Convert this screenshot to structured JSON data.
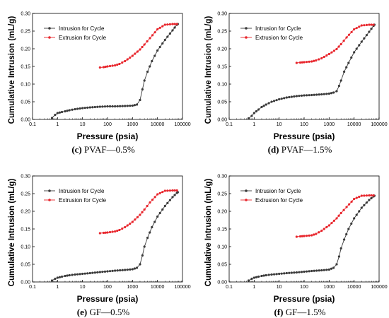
{
  "chart_data": [
    {
      "type": "line",
      "panel": "(c)",
      "caption_text": "PVAF—0.5%",
      "xlabel": "Pressure (psia)",
      "ylabel": "Cumulative Intrusion (mL/g)",
      "xscale": "log",
      "xlim": [
        0.1,
        100000
      ],
      "ylim": [
        0,
        0.3
      ],
      "xticks": [
        "0.1",
        "1",
        "10",
        "100",
        "1000",
        "10000",
        "100000"
      ],
      "yticks": [
        "0.00",
        "0.05",
        "0.10",
        "0.15",
        "0.20",
        "0.25",
        "0.30"
      ],
      "legend_position": "top-left",
      "series": [
        {
          "name": "Intrusion for Cycle",
          "color": "#3a3a3a",
          "points": [
            [
              0.6,
              0.004
            ],
            [
              0.8,
              0.013
            ],
            [
              1,
              0.018
            ],
            [
              1.5,
              0.021
            ],
            [
              2,
              0.023
            ],
            [
              3,
              0.026
            ],
            [
              5,
              0.029
            ],
            [
              10,
              0.032
            ],
            [
              20,
              0.034
            ],
            [
              50,
              0.036
            ],
            [
              100,
              0.037
            ],
            [
              200,
              0.037
            ],
            [
              500,
              0.038
            ],
            [
              1000,
              0.039
            ],
            [
              1500,
              0.042
            ],
            [
              2000,
              0.055
            ],
            [
              2500,
              0.085
            ],
            [
              3000,
              0.11
            ],
            [
              4000,
              0.135
            ],
            [
              6000,
              0.165
            ],
            [
              10000,
              0.195
            ],
            [
              20000,
              0.225
            ],
            [
              40000,
              0.252
            ],
            [
              60000,
              0.268
            ],
            [
              65000,
              0.27
            ]
          ]
        },
        {
          "name": "Extrusion for Cycle",
          "color": "#e8262d",
          "points": [
            [
              60000,
              0.27
            ],
            [
              40000,
              0.27
            ],
            [
              20000,
              0.268
            ],
            [
              10000,
              0.255
            ],
            [
              5000,
              0.23
            ],
            [
              3000,
              0.212
            ],
            [
              2000,
              0.198
            ],
            [
              1000,
              0.18
            ],
            [
              500,
              0.165
            ],
            [
              300,
              0.157
            ],
            [
              200,
              0.153
            ],
            [
              100,
              0.15
            ],
            [
              70,
              0.148
            ],
            [
              50,
              0.147
            ]
          ]
        }
      ]
    },
    {
      "type": "line",
      "panel": "(d)",
      "caption_text": "PVAF—1.5%",
      "xlabel": "Pressure (psia)",
      "ylabel": "Cumulative Intrusion (mL/g)",
      "xscale": "log",
      "xlim": [
        0.1,
        100000
      ],
      "ylim": [
        0,
        0.3
      ],
      "xticks": [
        "0.1",
        "1",
        "10",
        "100",
        "1000",
        "10000",
        "100000"
      ],
      "yticks": [
        "0.00",
        "0.05",
        "0.10",
        "0.15",
        "0.20",
        "0.25",
        "0.30"
      ],
      "legend_position": "top-left",
      "series": [
        {
          "name": "Intrusion for Cycle",
          "color": "#3a3a3a",
          "points": [
            [
              0.6,
              0.003
            ],
            [
              0.8,
              0.01
            ],
            [
              1,
              0.018
            ],
            [
              1.5,
              0.028
            ],
            [
              2,
              0.035
            ],
            [
              3,
              0.042
            ],
            [
              5,
              0.05
            ],
            [
              10,
              0.057
            ],
            [
              20,
              0.062
            ],
            [
              50,
              0.066
            ],
            [
              100,
              0.068
            ],
            [
              200,
              0.069
            ],
            [
              500,
              0.071
            ],
            [
              1000,
              0.073
            ],
            [
              1500,
              0.076
            ],
            [
              2000,
              0.08
            ],
            [
              2500,
              0.095
            ],
            [
              3000,
              0.11
            ],
            [
              4000,
              0.135
            ],
            [
              6000,
              0.16
            ],
            [
              10000,
              0.19
            ],
            [
              20000,
              0.22
            ],
            [
              40000,
              0.248
            ],
            [
              60000,
              0.265
            ],
            [
              65000,
              0.268
            ]
          ]
        },
        {
          "name": "Extrusion for Cycle",
          "color": "#e8262d",
          "points": [
            [
              60000,
              0.268
            ],
            [
              40000,
              0.268
            ],
            [
              20000,
              0.266
            ],
            [
              10000,
              0.255
            ],
            [
              5000,
              0.232
            ],
            [
              3000,
              0.213
            ],
            [
              2000,
              0.199
            ],
            [
              1000,
              0.185
            ],
            [
              500,
              0.173
            ],
            [
              300,
              0.167
            ],
            [
              200,
              0.164
            ],
            [
              100,
              0.162
            ],
            [
              70,
              0.161
            ],
            [
              50,
              0.16
            ]
          ]
        }
      ]
    },
    {
      "type": "line",
      "panel": "(e)",
      "caption_text": "GF—0.5%",
      "xlabel": "Pressure (psia)",
      "ylabel": "Cumulative Intrusion (mL/g)",
      "xscale": "log",
      "xlim": [
        0.1,
        100000
      ],
      "ylim": [
        0,
        0.3
      ],
      "xticks": [
        "0.1",
        "1",
        "10",
        "100",
        "1000",
        "10000",
        "100000"
      ],
      "yticks": [
        "0.00",
        "0.05",
        "0.10",
        "0.15",
        "0.20",
        "0.25",
        "0.30"
      ],
      "legend_position": "top-left",
      "series": [
        {
          "name": "Intrusion for Cycle",
          "color": "#3a3a3a",
          "points": [
            [
              0.6,
              0.004
            ],
            [
              0.8,
              0.009
            ],
            [
              1,
              0.012
            ],
            [
              1.5,
              0.015
            ],
            [
              2,
              0.017
            ],
            [
              3,
              0.019
            ],
            [
              5,
              0.021
            ],
            [
              10,
              0.023
            ],
            [
              20,
              0.025
            ],
            [
              50,
              0.028
            ],
            [
              100,
              0.03
            ],
            [
              200,
              0.032
            ],
            [
              500,
              0.034
            ],
            [
              1000,
              0.036
            ],
            [
              1500,
              0.04
            ],
            [
              2000,
              0.05
            ],
            [
              2500,
              0.075
            ],
            [
              3000,
              0.1
            ],
            [
              4000,
              0.125
            ],
            [
              6000,
              0.155
            ],
            [
              10000,
              0.185
            ],
            [
              20000,
              0.215
            ],
            [
              40000,
              0.24
            ],
            [
              60000,
              0.252
            ],
            [
              65000,
              0.254
            ]
          ]
        },
        {
          "name": "Extrusion for Cycle",
          "color": "#e8262d",
          "points": [
            [
              60000,
              0.259
            ],
            [
              40000,
              0.259
            ],
            [
              20000,
              0.258
            ],
            [
              10000,
              0.248
            ],
            [
              5000,
              0.225
            ],
            [
              3000,
              0.205
            ],
            [
              2000,
              0.19
            ],
            [
              1000,
              0.17
            ],
            [
              500,
              0.155
            ],
            [
              300,
              0.147
            ],
            [
              200,
              0.143
            ],
            [
              100,
              0.14
            ],
            [
              70,
              0.139
            ],
            [
              50,
              0.138
            ]
          ]
        }
      ]
    },
    {
      "type": "line",
      "panel": "(f)",
      "caption_text": "GF—1.5%",
      "xlabel": "Pressure (psia)",
      "ylabel": "Cumulative Intrusion (mL/g)",
      "xscale": "log",
      "xlim": [
        0.1,
        100000
      ],
      "ylim": [
        0,
        0.3
      ],
      "xticks": [
        "0.1",
        "1",
        "10",
        "100",
        "1000",
        "10000",
        "100000"
      ],
      "yticks": [
        "0.00",
        "0.05",
        "0.10",
        "0.15",
        "0.20",
        "0.25",
        "0.30"
      ],
      "legend_position": "top-left",
      "series": [
        {
          "name": "Intrusion for Cycle",
          "color": "#3a3a3a",
          "points": [
            [
              0.6,
              0.004
            ],
            [
              0.8,
              0.009
            ],
            [
              1,
              0.012
            ],
            [
              1.5,
              0.015
            ],
            [
              2,
              0.017
            ],
            [
              3,
              0.019
            ],
            [
              5,
              0.021
            ],
            [
              10,
              0.023
            ],
            [
              20,
              0.025
            ],
            [
              50,
              0.027
            ],
            [
              100,
              0.029
            ],
            [
              200,
              0.031
            ],
            [
              500,
              0.033
            ],
            [
              1000,
              0.035
            ],
            [
              1500,
              0.04
            ],
            [
              2000,
              0.05
            ],
            [
              2500,
              0.072
            ],
            [
              3000,
              0.095
            ],
            [
              4000,
              0.12
            ],
            [
              6000,
              0.15
            ],
            [
              10000,
              0.18
            ],
            [
              20000,
              0.21
            ],
            [
              40000,
              0.232
            ],
            [
              60000,
              0.242
            ],
            [
              65000,
              0.244
            ]
          ]
        },
        {
          "name": "Extrusion for Cycle",
          "color": "#e8262d",
          "points": [
            [
              60000,
              0.245
            ],
            [
              40000,
              0.245
            ],
            [
              20000,
              0.244
            ],
            [
              10000,
              0.235
            ],
            [
              5000,
              0.212
            ],
            [
              3000,
              0.195
            ],
            [
              2000,
              0.18
            ],
            [
              1000,
              0.16
            ],
            [
              500,
              0.145
            ],
            [
              300,
              0.136
            ],
            [
              200,
              0.132
            ],
            [
              100,
              0.13
            ],
            [
              70,
              0.129
            ],
            [
              50,
              0.128
            ]
          ]
        }
      ]
    }
  ]
}
